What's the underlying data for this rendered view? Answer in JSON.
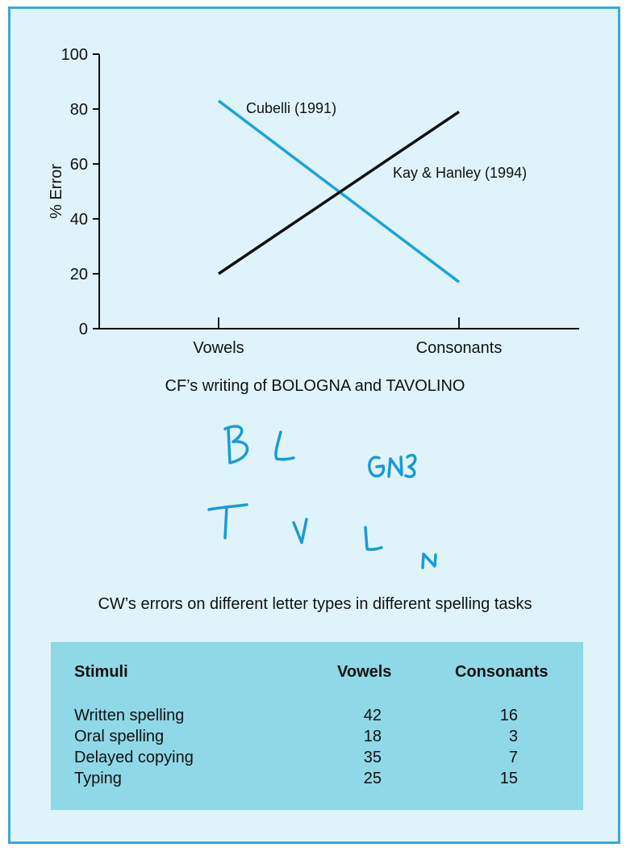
{
  "chart_data": {
    "type": "line",
    "categories": [
      "Vowels",
      "Consonants"
    ],
    "ylabel": "% Error",
    "ylim": [
      0,
      100
    ],
    "yticks": [
      0,
      20,
      40,
      60,
      80,
      100
    ],
    "series": [
      {
        "name": "Cubelli (1991)",
        "values": [
          83,
          17
        ],
        "color": "#1aa3dd"
      },
      {
        "name": "Kay & Hanley (1994)",
        "values": [
          20,
          79
        ],
        "color": "#111111"
      }
    ]
  },
  "handwriting": {
    "caption": "CF’s writing of BOLOGNA and TAVOLINO",
    "line1": [
      "B",
      "L",
      "GN"
    ],
    "line2": [
      "T",
      "V",
      "L",
      "N"
    ],
    "ink_color": "#1a9ad6"
  },
  "table": {
    "caption": "CW’s errors on different letter types in different spelling tasks",
    "headers": [
      "Stimuli",
      "Vowels",
      "Consonants"
    ],
    "rows": [
      {
        "stimuli": "Written spelling",
        "vowels": "42",
        "consonants": "16"
      },
      {
        "stimuli": "Oral spelling",
        "vowels": "18",
        "consonants": "3"
      },
      {
        "stimuli": "Delayed copying",
        "vowels": "35",
        "consonants": "7"
      },
      {
        "stimuli": "Typing",
        "vowels": "25",
        "consonants": "15"
      }
    ]
  }
}
